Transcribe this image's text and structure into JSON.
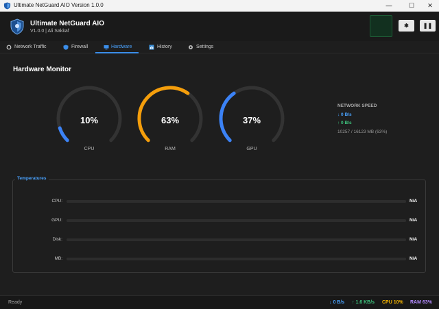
{
  "window": {
    "title": "Ultimate NetGuard AIO Version 1.0.0",
    "min": "—",
    "max": "☐",
    "close": "✕"
  },
  "header": {
    "app_name": "Ultimate NetGuard AIO",
    "subtitle": "V1.0.0 | Ali Sakkaf",
    "theme_btn": "✱",
    "pause_btn": "❚❚"
  },
  "tabs": [
    {
      "label": "Network Traffic",
      "icon": "circle-icon"
    },
    {
      "label": "Firewall",
      "icon": "shield-icon"
    },
    {
      "label": "Hardware",
      "icon": "monitor-icon",
      "active": true
    },
    {
      "label": "History",
      "icon": "chart-icon"
    },
    {
      "label": "Settings",
      "icon": "gear-icon"
    }
  ],
  "hardware": {
    "title": "Hardware Monitor",
    "gauges": [
      {
        "label": "CPU",
        "value": 10,
        "display": "10%",
        "color": "#3b82f6"
      },
      {
        "label": "RAM",
        "value": 63,
        "display": "63%",
        "color": "#f59e0b"
      },
      {
        "label": "GPU",
        "value": 37,
        "display": "37%",
        "color": "#3b82f6"
      }
    ],
    "network": {
      "title": "NETWORK SPEED",
      "down": "↓ 0 B/s",
      "up": "↑ 0 B/s",
      "memory": "10257 / 16123 MB  (63%)"
    }
  },
  "temperatures": {
    "title": "Temperatures",
    "rows": [
      {
        "label": "CPU:",
        "value": "N/A"
      },
      {
        "label": "GPU:",
        "value": "N/A"
      },
      {
        "label": "Disk:",
        "value": "N/A"
      },
      {
        "label": "MB:",
        "value": "N/A"
      }
    ]
  },
  "status": {
    "ready": "Ready",
    "down": "↓ 0 B/s",
    "up": "↑ 1.6 KB/s",
    "cpu": "CPU 10%",
    "ram": "RAM 63%",
    "colors": {
      "down": "#4aa3ff",
      "up": "#3ec47e",
      "cpu": "#f5b400",
      "ram": "#b48cff"
    }
  }
}
